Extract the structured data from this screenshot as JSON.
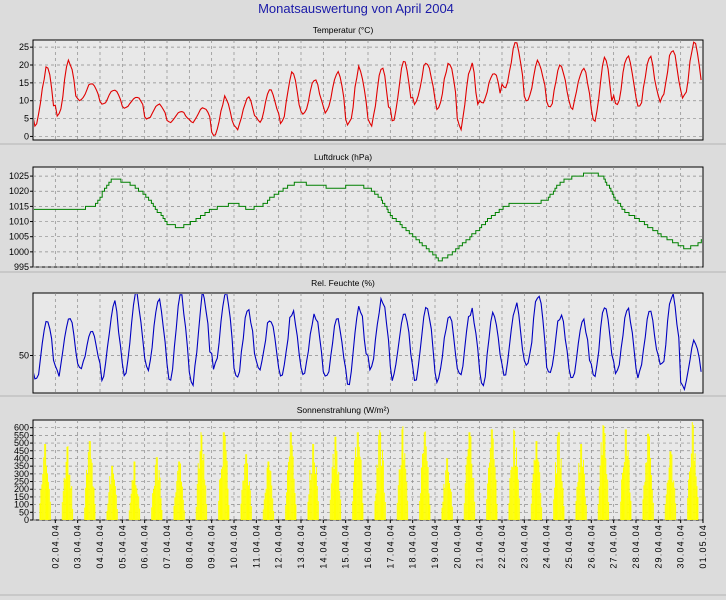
{
  "page_title": "Monatsauswertung von April 2004",
  "colors": {
    "background": "#dcdcdc",
    "plot_background": "#e8e8e8",
    "grid": "#8a8a8a",
    "temperature": "#e00000",
    "pressure": "#008000",
    "humidity": "#0000c0",
    "radiation": "#ffff00",
    "title": "#1a1aa8"
  },
  "x_axis": {
    "tick_labels": [
      "02.04.04",
      "03.04.04",
      "04.04.04",
      "05.04.04",
      "06.04.04",
      "07.04.04",
      "08.04.04",
      "09.04.04",
      "10.04.04",
      "11.04.04",
      "12.04.04",
      "13.04.04",
      "14.04.04",
      "15.04.04",
      "16.04.04",
      "17.04.04",
      "18.04.04",
      "19.04.04",
      "20.04.04",
      "21.04.04",
      "22.04.04",
      "23.04.04",
      "24.04.04",
      "25.04.04",
      "26.04.04",
      "27.04.04",
      "28.04.04",
      "29.04.04",
      "30.04.04",
      "01.05.04"
    ],
    "range": [
      1,
      31
    ]
  },
  "chart_data": [
    {
      "type": "line",
      "title": "Temperatur (°C)",
      "ylim": [
        -1,
        27
      ],
      "y_ticks": [
        0,
        5,
        10,
        15,
        20,
        25
      ],
      "grid": true,
      "series": [
        {
          "color": "#e00000",
          "daily_min": [
            3,
            6,
            10,
            9,
            8,
            5,
            4,
            4,
            0,
            2,
            4,
            4,
            6,
            7,
            3,
            3,
            5,
            9,
            8,
            2,
            9,
            13,
            10,
            8,
            8,
            4,
            9,
            8,
            10,
            11
          ],
          "daily_max": [
            19,
            21,
            15,
            13,
            11,
            9,
            7,
            8,
            11,
            11,
            13,
            18,
            16,
            18,
            19,
            19,
            21,
            21,
            20,
            20,
            18,
            26,
            21,
            20,
            19,
            22,
            22,
            22,
            24,
            26
          ]
        }
      ]
    },
    {
      "type": "line",
      "title": "Luftdruck (hPa)",
      "ylim": [
        995,
        1028
      ],
      "y_ticks": [
        995,
        1000,
        1005,
        1010,
        1015,
        1020,
        1025
      ],
      "grid": true,
      "series": [
        {
          "color": "#008000",
          "x": [
            1,
            2,
            3,
            3.7,
            4.5,
            5.2,
            5.8,
            6.3,
            7,
            7.6,
            8.2,
            9,
            10,
            10.6,
            11.2,
            12,
            12.8,
            13.5,
            14.5,
            15.5,
            16,
            16.6,
            17,
            17.7,
            18.3,
            18.8,
            19.2,
            19.7,
            20.3,
            21,
            21.7,
            22.4,
            23,
            23.5,
            24,
            24.6,
            25.3,
            26,
            26.5,
            27,
            27.5,
            28,
            28.6,
            29.2,
            29.7,
            30.2,
            30.7,
            31
          ],
          "y": [
            1014,
            1014,
            1014,
            1015,
            1024,
            1023,
            1020,
            1016,
            1009,
            1008,
            1010,
            1014,
            1016,
            1014,
            1015,
            1020,
            1023,
            1022,
            1021,
            1022,
            1021,
            1017,
            1012,
            1007,
            1003,
            1000,
            997,
            999,
            1003,
            1008,
            1013,
            1016,
            1016,
            1016,
            1017,
            1023,
            1025,
            1026,
            1025,
            1018,
            1013,
            1011,
            1008,
            1005,
            1003,
            1001,
            1002,
            1004
          ]
        }
      ]
    },
    {
      "type": "line",
      "title": "Rel. Feuchte (%)",
      "ylim": [
        20,
        100
      ],
      "y_ticks": [
        50
      ],
      "grid": true,
      "series": [
        {
          "color": "#0000c0",
          "daily_min": [
            30,
            35,
            40,
            32,
            36,
            38,
            30,
            28,
            40,
            30,
            38,
            33,
            36,
            31,
            28,
            40,
            32,
            31,
            30,
            34,
            26,
            34,
            40,
            36,
            30,
            32,
            36,
            34,
            40,
            24
          ],
          "daily_max": [
            80,
            82,
            70,
            92,
            100,
            94,
            96,
            100,
            100,
            88,
            80,
            86,
            82,
            80,
            88,
            94,
            86,
            90,
            82,
            86,
            84,
            90,
            100,
            82,
            78,
            90,
            86,
            84,
            100,
            62
          ]
        }
      ]
    },
    {
      "type": "bar",
      "title": "Sonnenstrahlung (W/m²)",
      "ylim": [
        0,
        650
      ],
      "y_ticks": [
        0,
        50,
        100,
        150,
        200,
        250,
        300,
        350,
        400,
        450,
        500,
        550,
        600
      ],
      "grid": true,
      "series": [
        {
          "color": "#ffff00",
          "daily_peak": [
            520,
            500,
            540,
            370,
            400,
            430,
            400,
            580,
            600,
            450,
            400,
            600,
            520,
            570,
            600,
            600,
            620,
            600,
            420,
            600,
            620,
            610,
            540,
            600,
            520,
            630,
            620,
            590,
            470,
            650
          ]
        }
      ]
    }
  ]
}
